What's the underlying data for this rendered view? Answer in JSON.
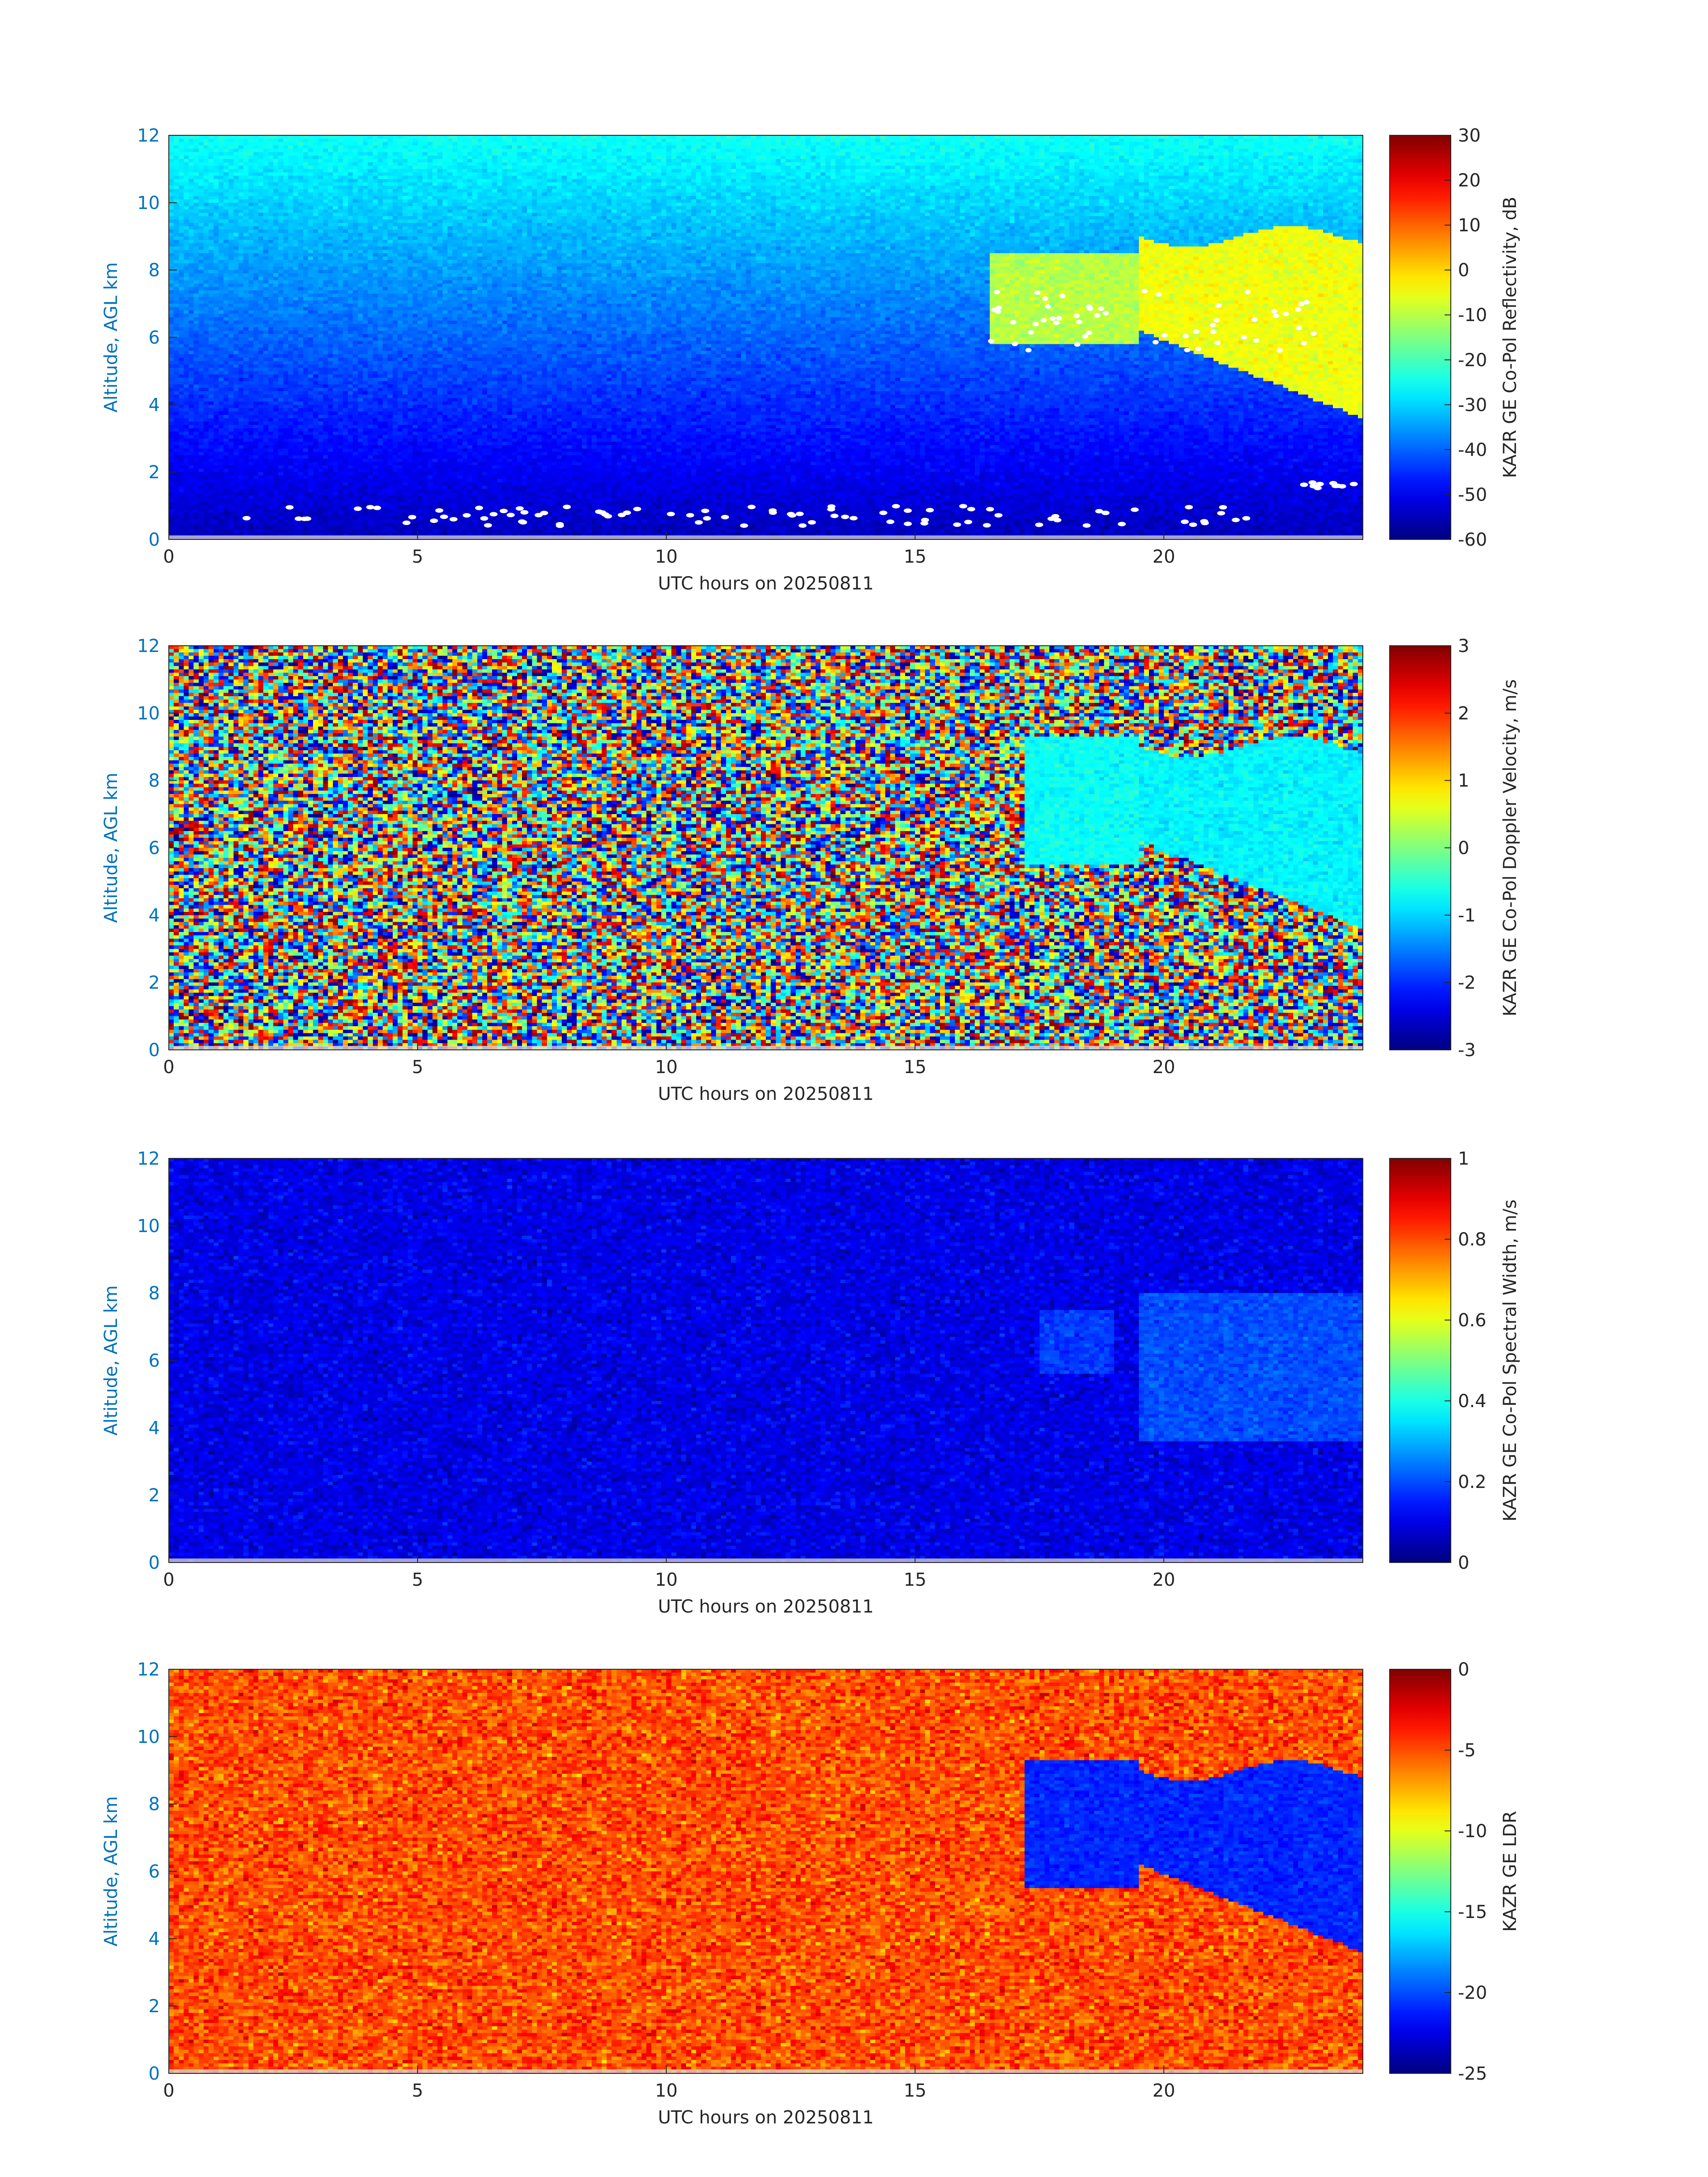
{
  "chart_data": [
    {
      "type": "heatmap",
      "variable": "reflectivity",
      "xlabel": "UTC hours on 20250811",
      "ylabel": "Altitude, AGL km",
      "xlim": [
        0,
        24
      ],
      "ylim": [
        0,
        12
      ],
      "xticks": [
        "0",
        "5",
        "10",
        "15",
        "20"
      ],
      "yticks": [
        "0",
        "2",
        "4",
        "6",
        "8",
        "10",
        "12"
      ],
      "colorbar_label": "KAZR GE Co-Pol Reflectivity, dB",
      "colorbar_range": [
        -60,
        30
      ],
      "colorbar_ticks": [
        "-60",
        "-50",
        "-40",
        "-30",
        "-20",
        "-10",
        "0",
        "10",
        "20",
        "30"
      ],
      "colormap": "jet",
      "background": "noise increasing from -55 dB near ground to -25 dB at 12 km",
      "features": [
        {
          "kind": "cloud",
          "x_hours": [
            16.5,
            19.5
          ],
          "alt_km": [
            5.8,
            8.5
          ],
          "value": -10
        },
        {
          "kind": "cloud",
          "x_hours": [
            19.5,
            24
          ],
          "alt_km": [
            3.6,
            9.0
          ],
          "value": -5
        },
        {
          "kind": "low_cloud",
          "x_hours": [
            1.5,
            22
          ],
          "alt_km": [
            0.4,
            1.0
          ],
          "value": "white markers"
        },
        {
          "kind": "low_layer",
          "x_hours": [
            22.8,
            24
          ],
          "alt_km": [
            1.5,
            1.7
          ],
          "value": "white markers"
        }
      ]
    },
    {
      "type": "heatmap",
      "variable": "doppler_velocity",
      "xlabel": "UTC hours on 20250811",
      "ylabel": "Altitude, AGL km",
      "xlim": [
        0,
        24
      ],
      "ylim": [
        0,
        12
      ],
      "xticks": [
        "0",
        "5",
        "10",
        "15",
        "20"
      ],
      "yticks": [
        "0",
        "2",
        "4",
        "6",
        "8",
        "10",
        "12"
      ],
      "colorbar_label": "KAZR GE Co-Pol Doppler Velocity, m/s",
      "colorbar_range": [
        -3,
        3
      ],
      "colorbar_ticks": [
        "-3",
        "-2",
        "-1",
        "0",
        "1",
        "2",
        "3"
      ],
      "colormap": "jet",
      "background": "random noise across full range",
      "features": [
        {
          "kind": "cloud",
          "x_hours": [
            17.2,
            19.5
          ],
          "alt_km": [
            5.5,
            9.3
          ],
          "value": -0.7
        },
        {
          "kind": "cloud",
          "x_hours": [
            19.5,
            24
          ],
          "alt_km": [
            3.6,
            9.0
          ],
          "value": -0.8
        }
      ]
    },
    {
      "type": "heatmap",
      "variable": "spectral_width",
      "xlabel": "UTC hours on 20250811",
      "ylabel": "Altitude, AGL km",
      "xlim": [
        0,
        24
      ],
      "ylim": [
        0,
        12
      ],
      "xticks": [
        "0",
        "5",
        "10",
        "15",
        "20"
      ],
      "yticks": [
        "0",
        "2",
        "4",
        "6",
        "8",
        "10",
        "12"
      ],
      "colorbar_label": "KAZR GE Co-Pol Spectral Width, m/s",
      "colorbar_range": [
        0,
        1
      ],
      "colorbar_ticks": [
        "0",
        "0.2",
        "0.4",
        "0.6",
        "0.8",
        "1"
      ],
      "colormap": "jet",
      "background": "low values, mostly 0.05-0.2",
      "features": [
        {
          "kind": "cloud",
          "x_hours": [
            17.5,
            19.0
          ],
          "alt_km": [
            5.6,
            7.5
          ],
          "value": 0.18
        },
        {
          "kind": "cloud",
          "x_hours": [
            19.5,
            24
          ],
          "alt_km": [
            3.6,
            8.0
          ],
          "value": 0.2
        }
      ]
    },
    {
      "type": "heatmap",
      "variable": "ldr",
      "xlabel": "UTC hours on 20250811",
      "ylabel": "Altitude, AGL km",
      "xlim": [
        0,
        24
      ],
      "ylim": [
        0,
        12
      ],
      "xticks": [
        "0",
        "5",
        "10",
        "15",
        "20"
      ],
      "yticks": [
        "0",
        "2",
        "4",
        "6",
        "8",
        "10",
        "12"
      ],
      "colorbar_label": "KAZR GE LDR",
      "colorbar_range": [
        -25,
        0
      ],
      "colorbar_ticks": [
        "-25",
        "-20",
        "-15",
        "-10",
        "-5",
        "0"
      ],
      "colormap": "jet",
      "background": "noise around -5 dB",
      "features": [
        {
          "kind": "cloud",
          "x_hours": [
            17.2,
            19.5
          ],
          "alt_km": [
            5.5,
            9.3
          ],
          "value": -21
        },
        {
          "kind": "cloud",
          "x_hours": [
            19.5,
            24
          ],
          "alt_km": [
            3.6,
            9.0
          ],
          "value": -21
        }
      ]
    }
  ]
}
